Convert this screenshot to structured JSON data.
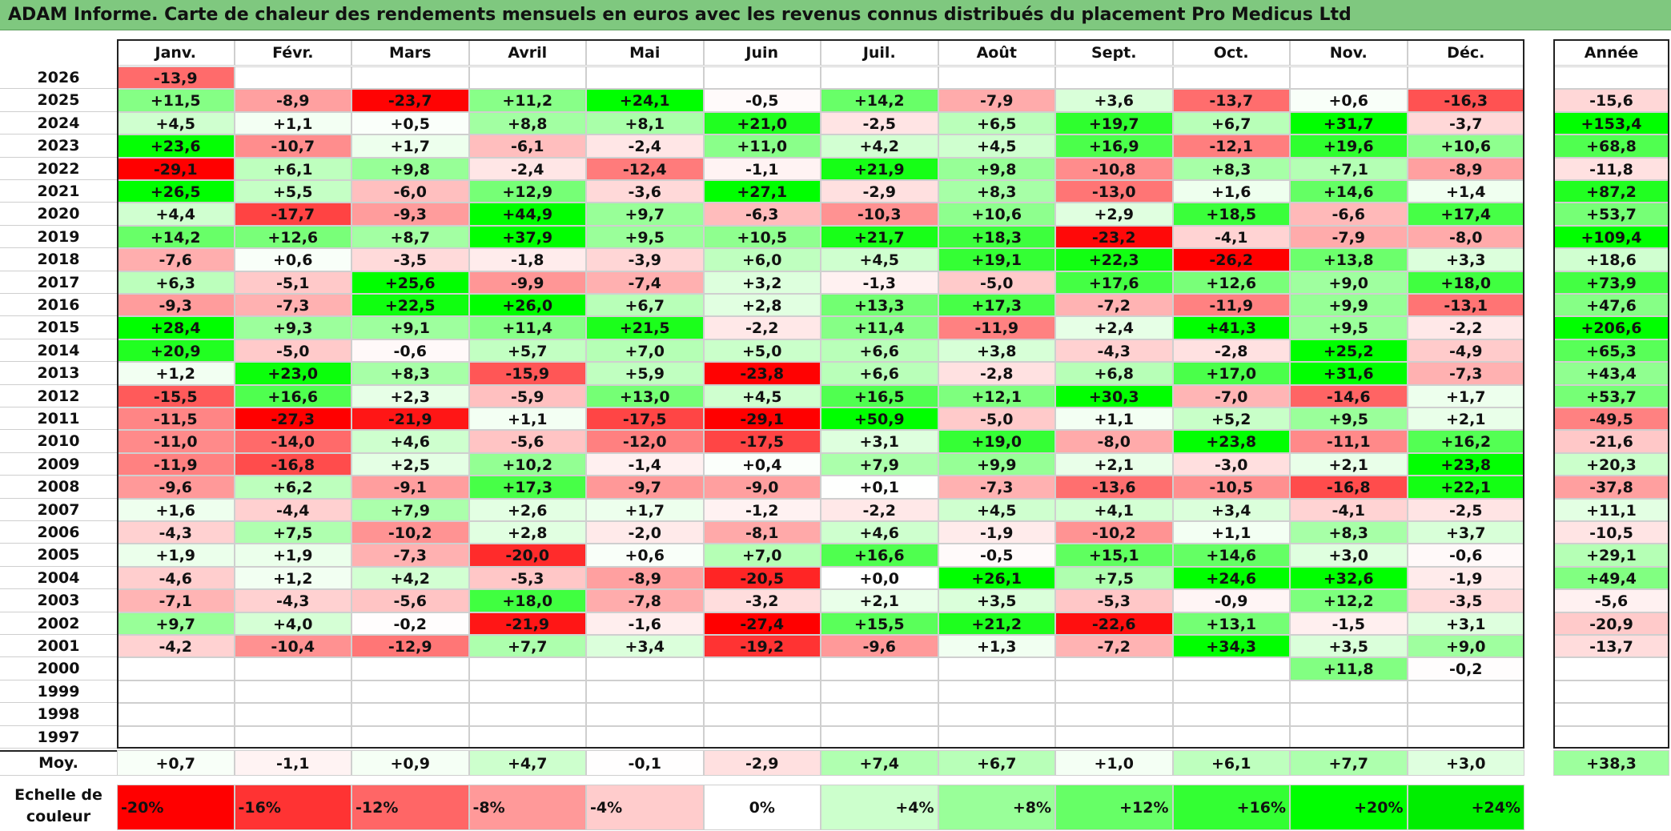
{
  "title": "ADAM Informe. Carte de chaleur des rendements mensuels en euros avec les revenus connus distribués du placement Pro Medicus Ltd",
  "chart_data": {
    "type": "heatmap",
    "title": "ADAM Informe. Carte de chaleur des rendements mensuels en euros avec les revenus connus distribués du placement Pro Medicus Ltd",
    "months": [
      "Janv.",
      "Févr.",
      "Mars",
      "Avril",
      "Mai",
      "Juin",
      "Juil.",
      "Août",
      "Sept.",
      "Oct.",
      "Nov.",
      "Déc."
    ],
    "year_header": "Année",
    "rows": [
      {
        "year": "2026",
        "values": [
          "-13,9",
          "",
          "",
          "",
          "",
          "",
          "",
          "",
          "",
          "",
          "",
          ""
        ],
        "annual": ""
      },
      {
        "year": "2025",
        "values": [
          "+11,5",
          "-8,9",
          "-23,7",
          "+11,2",
          "+24,1",
          "-0,5",
          "+14,2",
          "-7,9",
          "+3,6",
          "-13,7",
          "+0,6",
          "-16,3"
        ],
        "annual": "-15,6"
      },
      {
        "year": "2024",
        "values": [
          "+4,5",
          "+1,1",
          "+0,5",
          "+8,8",
          "+8,1",
          "+21,0",
          "-2,5",
          "+6,5",
          "+19,7",
          "+6,7",
          "+31,7",
          "-3,7"
        ],
        "annual": "+153,4"
      },
      {
        "year": "2023",
        "values": [
          "+23,6",
          "-10,7",
          "+1,7",
          "-6,1",
          "-2,4",
          "+11,0",
          "+4,2",
          "+4,5",
          "+16,9",
          "-12,1",
          "+19,6",
          "+10,6"
        ],
        "annual": "+68,8"
      },
      {
        "year": "2022",
        "values": [
          "-29,1",
          "+6,1",
          "+9,8",
          "-2,4",
          "-12,4",
          "-1,1",
          "+21,9",
          "+9,8",
          "-10,8",
          "+8,3",
          "+7,1",
          "-8,9"
        ],
        "annual": "-11,8"
      },
      {
        "year": "2021",
        "values": [
          "+26,5",
          "+5,5",
          "-6,0",
          "+12,9",
          "-3,6",
          "+27,1",
          "-2,9",
          "+8,3",
          "-13,0",
          "+1,6",
          "+14,6",
          "+1,4"
        ],
        "annual": "+87,2"
      },
      {
        "year": "2020",
        "values": [
          "+4,4",
          "-17,7",
          "-9,3",
          "+44,9",
          "+9,7",
          "-6,3",
          "-10,3",
          "+10,6",
          "+2,9",
          "+18,5",
          "-6,6",
          "+17,4"
        ],
        "annual": "+53,7"
      },
      {
        "year": "2019",
        "values": [
          "+14,2",
          "+12,6",
          "+8,7",
          "+37,9",
          "+9,5",
          "+10,5",
          "+21,7",
          "+18,3",
          "-23,2",
          "-4,1",
          "-7,9",
          "-8,0"
        ],
        "annual": "+109,4"
      },
      {
        "year": "2018",
        "values": [
          "-7,6",
          "+0,6",
          "-3,5",
          "-1,8",
          "-3,9",
          "+6,0",
          "+4,5",
          "+19,1",
          "+22,3",
          "-26,2",
          "+13,8",
          "+3,3"
        ],
        "annual": "+18,6"
      },
      {
        "year": "2017",
        "values": [
          "+6,3",
          "-5,1",
          "+25,6",
          "-9,9",
          "-7,4",
          "+3,2",
          "-1,3",
          "-5,0",
          "+17,6",
          "+12,6",
          "+9,0",
          "+18,0"
        ],
        "annual": "+73,9"
      },
      {
        "year": "2016",
        "values": [
          "-9,3",
          "-7,3",
          "+22,5",
          "+26,0",
          "+6,7",
          "+2,8",
          "+13,3",
          "+17,3",
          "-7,2",
          "-11,9",
          "+9,9",
          "-13,1"
        ],
        "annual": "+47,6"
      },
      {
        "year": "2015",
        "values": [
          "+28,4",
          "+9,3",
          "+9,1",
          "+11,4",
          "+21,5",
          "-2,2",
          "+11,4",
          "-11,9",
          "+2,4",
          "+41,3",
          "+9,5",
          "-2,2"
        ],
        "annual": "+206,6"
      },
      {
        "year": "2014",
        "values": [
          "+20,9",
          "-5,0",
          "-0,6",
          "+5,7",
          "+7,0",
          "+5,0",
          "+6,6",
          "+3,8",
          "-4,3",
          "-2,8",
          "+25,2",
          "-4,9"
        ],
        "annual": "+65,3"
      },
      {
        "year": "2013",
        "values": [
          "+1,2",
          "+23,0",
          "+8,3",
          "-15,9",
          "+5,9",
          "-23,8",
          "+6,6",
          "-2,8",
          "+6,8",
          "+17,0",
          "+31,6",
          "-7,3"
        ],
        "annual": "+43,4"
      },
      {
        "year": "2012",
        "values": [
          "-15,5",
          "+16,6",
          "+2,3",
          "-5,9",
          "+13,0",
          "+4,5",
          "+16,5",
          "+12,1",
          "+30,3",
          "-7,0",
          "-14,6",
          "+1,7"
        ],
        "annual": "+53,7"
      },
      {
        "year": "2011",
        "values": [
          "-11,5",
          "-27,3",
          "-21,9",
          "+1,1",
          "-17,5",
          "-29,1",
          "+50,9",
          "-5,0",
          "+1,1",
          "+5,2",
          "+9,5",
          "+2,1"
        ],
        "annual": "-49,5"
      },
      {
        "year": "2010",
        "values": [
          "-11,0",
          "-14,0",
          "+4,6",
          "-5,6",
          "-12,0",
          "-17,5",
          "+3,1",
          "+19,0",
          "-8,0",
          "+23,8",
          "-11,1",
          "+16,2"
        ],
        "annual": "-21,6"
      },
      {
        "year": "2009",
        "values": [
          "-11,9",
          "-16,8",
          "+2,5",
          "+10,2",
          "-1,4",
          "+0,4",
          "+7,9",
          "+9,9",
          "+2,1",
          "-3,0",
          "+2,1",
          "+23,8"
        ],
        "annual": "+20,3"
      },
      {
        "year": "2008",
        "values": [
          "-9,6",
          "+6,2",
          "-9,1",
          "+17,3",
          "-9,7",
          "-9,0",
          "+0,1",
          "-7,3",
          "-13,6",
          "-10,5",
          "-16,8",
          "+22,1"
        ],
        "annual": "-37,8"
      },
      {
        "year": "2007",
        "values": [
          "+1,6",
          "-4,4",
          "+7,9",
          "+2,6",
          "+1,7",
          "-1,2",
          "-2,2",
          "+4,5",
          "+4,1",
          "+3,4",
          "-4,1",
          "-2,5"
        ],
        "annual": "+11,1"
      },
      {
        "year": "2006",
        "values": [
          "-4,3",
          "+7,5",
          "-10,2",
          "+2,8",
          "-2,0",
          "-8,1",
          "+4,6",
          "-1,9",
          "-10,2",
          "+1,1",
          "+8,3",
          "+3,7"
        ],
        "annual": "-10,5"
      },
      {
        "year": "2005",
        "values": [
          "+1,9",
          "+1,9",
          "-7,3",
          "-20,0",
          "+0,6",
          "+7,0",
          "+16,6",
          "-0,5",
          "+15,1",
          "+14,6",
          "+3,0",
          "-0,6"
        ],
        "annual": "+29,1"
      },
      {
        "year": "2004",
        "values": [
          "-4,6",
          "+1,2",
          "+4,2",
          "-5,3",
          "-8,9",
          "-20,5",
          "+0,0",
          "+26,1",
          "+7,5",
          "+24,6",
          "+32,6",
          "-1,9"
        ],
        "annual": "+49,4"
      },
      {
        "year": "2003",
        "values": [
          "-7,1",
          "-4,3",
          "-5,6",
          "+18,0",
          "-7,8",
          "-3,2",
          "+2,1",
          "+3,5",
          "-5,3",
          "-0,9",
          "+12,2",
          "-3,5"
        ],
        "annual": "-5,6"
      },
      {
        "year": "2002",
        "values": [
          "+9,7",
          "+4,0",
          "-0,2",
          "-21,9",
          "-1,6",
          "-27,4",
          "+15,5",
          "+21,2",
          "-22,6",
          "+13,1",
          "-1,5",
          "+3,1"
        ],
        "annual": "-20,9"
      },
      {
        "year": "2001",
        "values": [
          "-4,2",
          "-10,4",
          "-12,9",
          "+7,7",
          "+3,4",
          "-19,2",
          "-9,6",
          "+1,3",
          "-7,2",
          "+34,3",
          "+3,5",
          "+9,0"
        ],
        "annual": "-13,7"
      },
      {
        "year": "2000",
        "values": [
          "",
          "",
          "",
          "",
          "",
          "",
          "",
          "",
          "",
          "",
          "+11,8",
          "-0,2"
        ],
        "annual": ""
      },
      {
        "year": "1999",
        "values": [
          "",
          "",
          "",
          "",
          "",
          "",
          "",
          "",
          "",
          "",
          "",
          ""
        ],
        "annual": ""
      },
      {
        "year": "1998",
        "values": [
          "",
          "",
          "",
          "",
          "",
          "",
          "",
          "",
          "",
          "",
          "",
          ""
        ],
        "annual": ""
      },
      {
        "year": "1997",
        "values": [
          "",
          "",
          "",
          "",
          "",
          "",
          "",
          "",
          "",
          "",
          "",
          ""
        ],
        "annual": ""
      }
    ],
    "average": {
      "label": "Moy.",
      "values": [
        "+0,7",
        "-1,1",
        "+0,9",
        "+4,7",
        "-0,1",
        "-2,9",
        "+7,4",
        "+6,7",
        "+1,0",
        "+6,1",
        "+7,7",
        "+3,0"
      ],
      "annual": "+38,3"
    },
    "color_scale": {
      "label_line1": "Echelle de",
      "label_line2": "couleur",
      "stops": [
        "-20%",
        "-16%",
        "-12%",
        "-8%",
        "-4%",
        "0%",
        "+4%",
        "+8%",
        "+12%",
        "+16%",
        "+20%",
        "+24%"
      ],
      "colors": [
        "#ff0000",
        "#ff3333",
        "#ff6666",
        "#ff9999",
        "#ffcccc",
        "#ffffff",
        "#ccffcc",
        "#99ff99",
        "#66ff66",
        "#33ff33",
        "#00ff00",
        "#00ee00"
      ]
    },
    "color_rule": {
      "negative_full": "#ff0000",
      "positive_full": "#00ff00",
      "monthly_full_at": 24,
      "annual_full_at": 100
    }
  }
}
